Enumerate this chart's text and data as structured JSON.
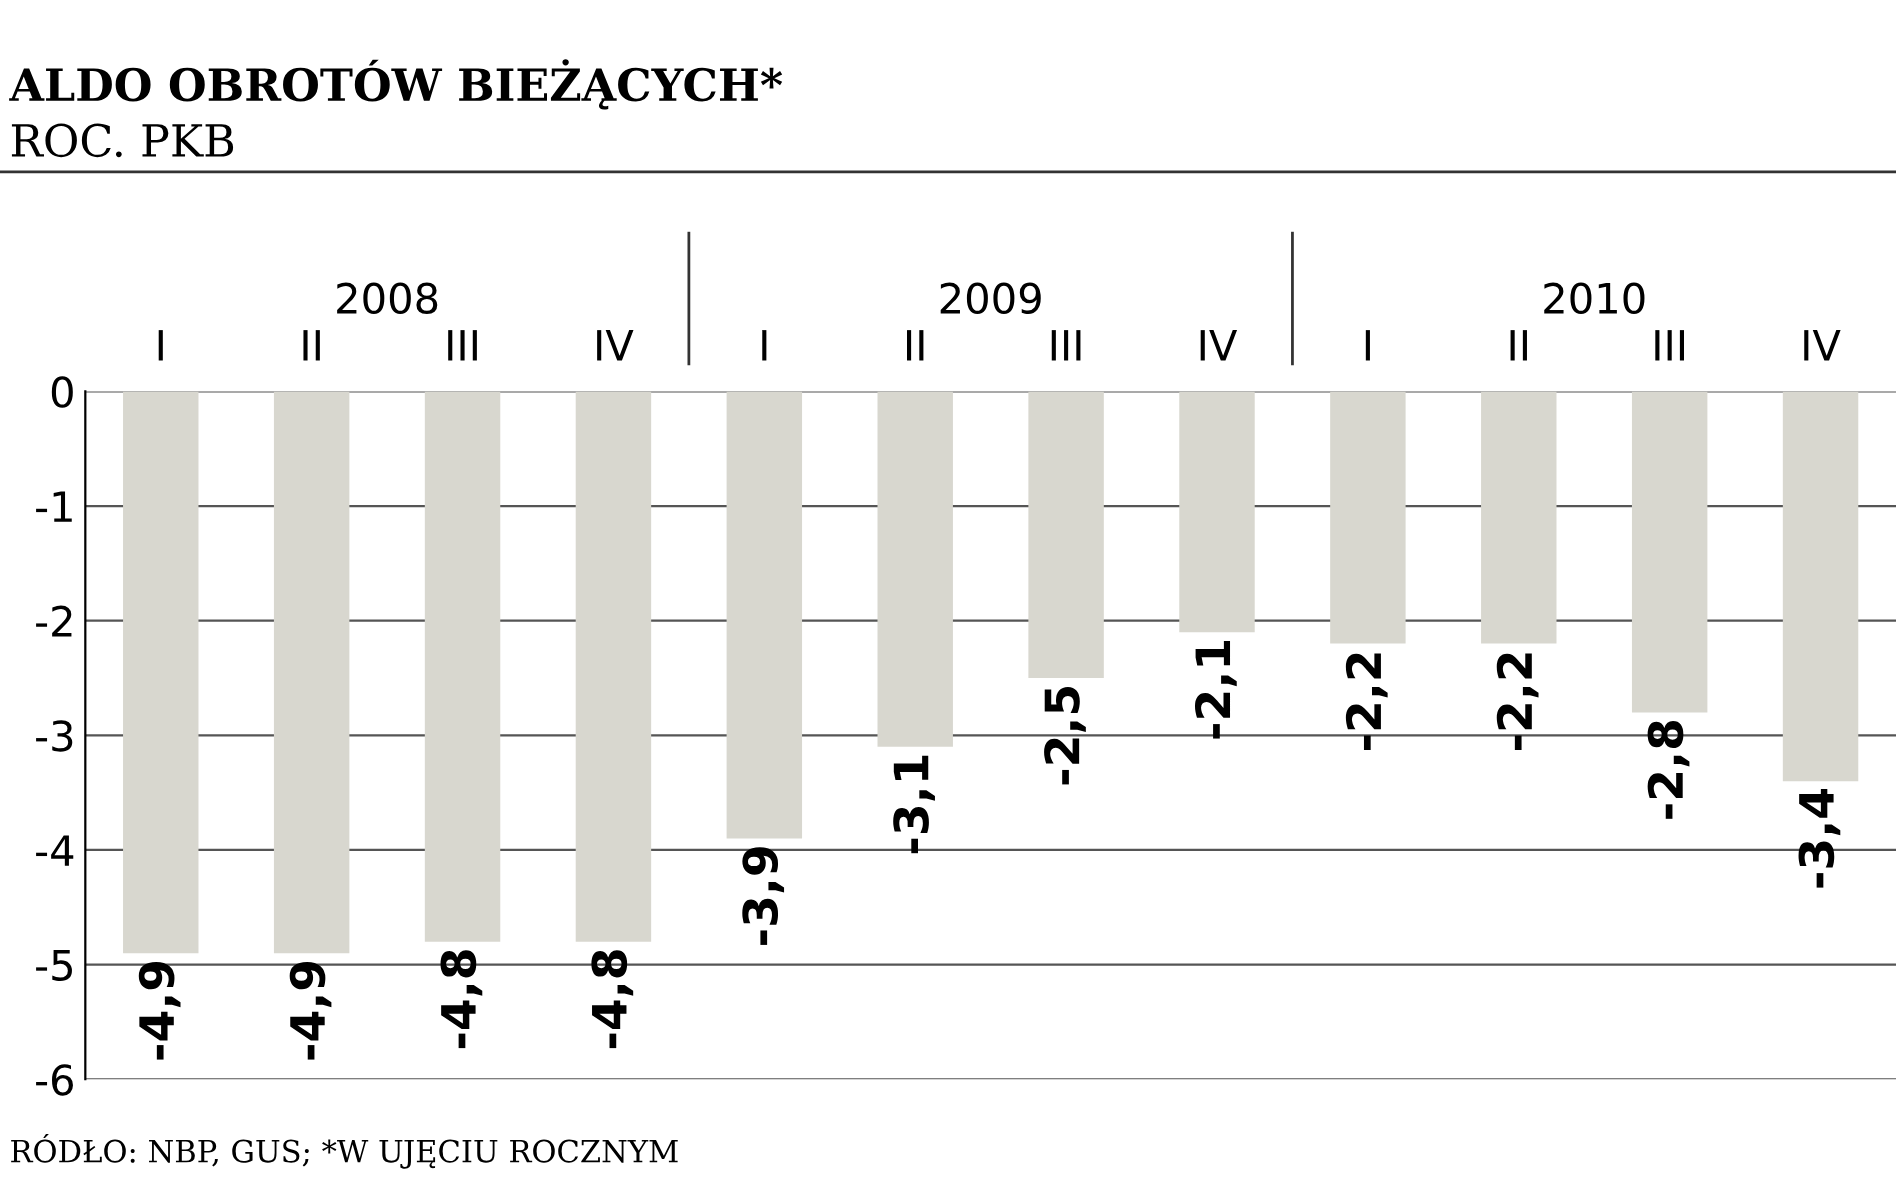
{
  "chart_data": {
    "type": "bar",
    "title": "ALDO OBROTÓW BIEŻĄCYCH*",
    "subtitle": "ROC. PKB",
    "categories": [
      "I",
      "II",
      "III",
      "IV",
      "I",
      "II",
      "III",
      "IV",
      "I",
      "II",
      "III",
      "IV"
    ],
    "values": [
      -4.9,
      -4.9,
      -4.8,
      -4.8,
      -3.9,
      -3.1,
      -2.5,
      -2.1,
      -2.2,
      -2.2,
      -2.8,
      -3.4
    ],
    "value_labels": [
      "-4,9",
      "-4,9",
      "-4,8",
      "-4,8",
      "-3,9",
      "-3,1",
      "-2,5",
      "-2,1",
      "-2,2",
      "-2,2",
      "-2,8",
      "-3,4"
    ],
    "color": "#d8d7cf",
    "ylim": [
      -6,
      0
    ],
    "yticks": [
      0,
      -1,
      -2,
      -3,
      -4,
      -5,
      -6
    ],
    "grid": "y",
    "annotations": [
      "2008",
      "2009",
      "2010",
      "RÓDŁO: NBP, GUS; *W UJĘCIU ROCZNYM"
    ]
  }
}
